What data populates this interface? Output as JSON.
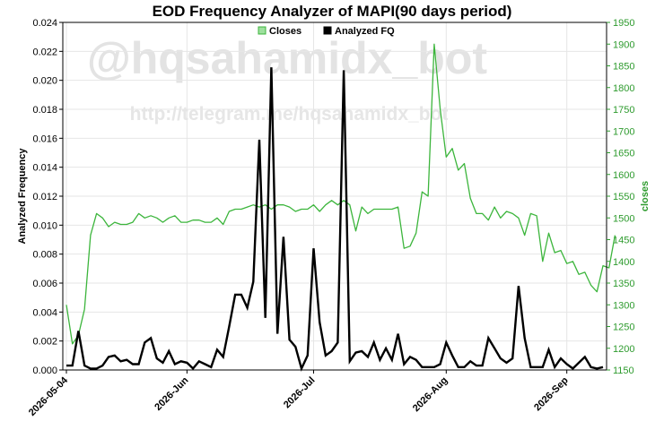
{
  "watermark": {
    "line1": "@hqsahamidx_bot",
    "line2": "http://telegram.me/hqsahamidx_bot"
  },
  "legend": {
    "closes": "Closes",
    "fq": "Analyzed FQ"
  },
  "colors": {
    "closes": "#3cb53c",
    "fq": "#000000",
    "right_axis": "#2e9b2e",
    "grid": "#e6e6e6"
  },
  "chart_data": {
    "type": "line",
    "title": "EOD Frequency Analyzer of MAPI(90 days period)",
    "ylabel": "Analyzed Frequency",
    "y2label": "closes",
    "ylim": [
      0,
      0.024
    ],
    "y2lim": [
      1150,
      1950
    ],
    "yticks": [
      "0.000",
      "0.002",
      "0.004",
      "0.006",
      "0.008",
      "0.010",
      "0.012",
      "0.014",
      "0.016",
      "0.018",
      "0.020",
      "0.022",
      "0.024"
    ],
    "y2ticks": [
      "1150",
      "1200",
      "1250",
      "1300",
      "1350",
      "1400",
      "1450",
      "1500",
      "1550",
      "1600",
      "1650",
      "1700",
      "1750",
      "1800",
      "1850",
      "1900",
      "1950"
    ],
    "x_tick_labels": [
      {
        "label": "2026-05-04",
        "index": 0
      },
      {
        "label": "2026-Jun",
        "index": 20
      },
      {
        "label": "2026-Jul",
        "index": 41
      },
      {
        "label": "2026-Aug",
        "index": 63
      },
      {
        "label": "2026-Sep",
        "index": 83
      }
    ],
    "grid": true,
    "legend_position": "top-center",
    "series": [
      {
        "name": "Closes",
        "axis": "right",
        "values": [
          1300,
          1210,
          1230,
          1290,
          1460,
          1510,
          1500,
          1480,
          1490,
          1485,
          1485,
          1490,
          1510,
          1500,
          1505,
          1500,
          1490,
          1500,
          1505,
          1490,
          1490,
          1495,
          1495,
          1490,
          1490,
          1500,
          1485,
          1515,
          1520,
          1520,
          1525,
          1530,
          1525,
          1530,
          1520,
          1530,
          1530,
          1525,
          1515,
          1520,
          1520,
          1530,
          1515,
          1530,
          1540,
          1530,
          1540,
          1530,
          1470,
          1525,
          1510,
          1520,
          1520,
          1520,
          1520,
          1525,
          1430,
          1435,
          1465,
          1560,
          1550,
          1900,
          1750,
          1640,
          1660,
          1610,
          1625,
          1545,
          1510,
          1510,
          1495,
          1525,
          1500,
          1515,
          1510,
          1500,
          1460,
          1510,
          1505,
          1400,
          1465,
          1420,
          1425,
          1395,
          1400,
          1370,
          1375,
          1345,
          1330,
          1390,
          1385,
          1460
        ]
      },
      {
        "name": "Analyzed FQ",
        "axis": "left",
        "values": [
          0.0003,
          0.0003,
          0.0027,
          0.0003,
          0.0001,
          0.0001,
          0.0003,
          0.0009,
          0.001,
          0.0006,
          0.0007,
          0.0004,
          0.0004,
          0.0019,
          0.0022,
          0.0008,
          0.0005,
          0.0013,
          0.0004,
          0.0006,
          0.0005,
          0.0001,
          0.0006,
          0.0004,
          0.0002,
          0.0014,
          0.0009,
          0.003,
          0.0052,
          0.0052,
          0.0043,
          0.0061,
          0.0159,
          0.0036,
          0.0209,
          0.0025,
          0.0092,
          0.0021,
          0.0016,
          0.0001,
          0.001,
          0.0084,
          0.0033,
          0.001,
          0.0013,
          0.0019,
          0.0207,
          0.0006,
          0.0012,
          0.0013,
          0.0009,
          0.0019,
          0.0007,
          0.0015,
          0.0007,
          0.0025,
          0.0004,
          0.0009,
          0.0007,
          0.0002,
          0.0002,
          0.0002,
          0.0004,
          0.0019,
          0.001,
          0.0002,
          0.0002,
          0.0006,
          0.0003,
          0.0003,
          0.0022,
          0.0015,
          0.0008,
          0.0005,
          0.0008,
          0.0058,
          0.0022,
          0.0002,
          0.0002,
          0.0002,
          0.0014,
          0.0002,
          0.0008,
          0.0004,
          0.0001,
          0.0005,
          0.0009,
          0.0002,
          0.0001,
          0.0002
        ]
      }
    ]
  }
}
